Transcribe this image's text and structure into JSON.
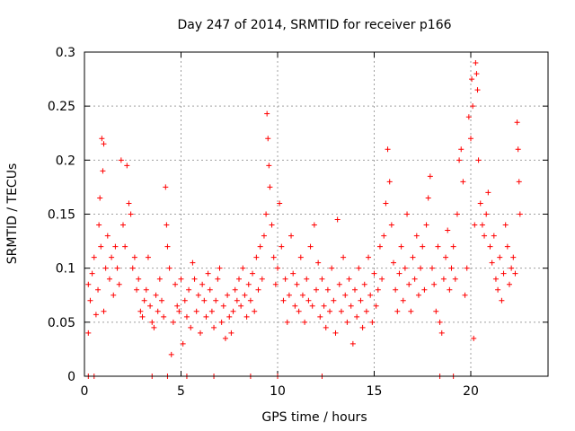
{
  "chart_data": {
    "type": "scatter",
    "title": "Day 247 of 2014, SRMTID for receiver p166",
    "xlabel": "GPS time / hours",
    "ylabel": "SRMTID / TECUs",
    "xlim": [
      0,
      24
    ],
    "ylim": [
      0,
      0.3
    ],
    "xticks": [
      0,
      5,
      10,
      15,
      20
    ],
    "xtick_labels": [
      "0",
      "5",
      "10",
      "15",
      "20"
    ],
    "yticks": [
      0,
      0.05,
      0.1,
      0.15,
      0.2,
      0.25,
      0.3
    ],
    "ytick_labels": [
      "0",
      "0.05",
      "0.1",
      "0.15",
      "0.2",
      "0.25",
      "0.3"
    ],
    "grid": true,
    "marker": "+",
    "color": "#ff0000",
    "series": [
      {
        "name": "SRMTID",
        "points": [
          [
            0.2,
            0.04
          ],
          [
            0.2,
            0.085
          ],
          [
            0.3,
            0.07
          ],
          [
            0.4,
            0.095
          ],
          [
            0.5,
            0.11
          ],
          [
            0.6,
            0.057
          ],
          [
            0.7,
            0.08
          ],
          [
            0.75,
            0.14
          ],
          [
            0.8,
            0.165
          ],
          [
            0.85,
            0.12
          ],
          [
            0.9,
            0.22
          ],
          [
            0.95,
            0.19
          ],
          [
            1.0,
            0.215
          ],
          [
            1.0,
            0.06
          ],
          [
            1.1,
            0.1
          ],
          [
            1.2,
            0.13
          ],
          [
            1.3,
            0.09
          ],
          [
            1.4,
            0.11
          ],
          [
            1.5,
            0.075
          ],
          [
            1.6,
            0.12
          ],
          [
            1.7,
            0.1
          ],
          [
            1.8,
            0.085
          ],
          [
            1.9,
            0.2
          ],
          [
            2.0,
            0.14
          ],
          [
            2.1,
            0.12
          ],
          [
            2.2,
            0.195
          ],
          [
            2.3,
            0.16
          ],
          [
            2.4,
            0.15
          ],
          [
            2.5,
            0.1
          ],
          [
            2.6,
            0.11
          ],
          [
            2.7,
            0.08
          ],
          [
            2.8,
            0.09
          ],
          [
            2.9,
            0.06
          ],
          [
            3.0,
            0.055
          ],
          [
            3.1,
            0.07
          ],
          [
            3.2,
            0.08
          ],
          [
            3.3,
            0.11
          ],
          [
            3.4,
            0.065
          ],
          [
            3.5,
            0.05
          ],
          [
            3.6,
            0.045
          ],
          [
            3.7,
            0.075
          ],
          [
            3.8,
            0.06
          ],
          [
            3.9,
            0.09
          ],
          [
            4.0,
            0.07
          ],
          [
            4.1,
            0.055
          ],
          [
            4.2,
            0.175
          ],
          [
            4.25,
            0.14
          ],
          [
            4.3,
            0.12
          ],
          [
            4.4,
            0.1
          ],
          [
            4.5,
            0.02
          ],
          [
            4.6,
            0.05
          ],
          [
            4.7,
            0.085
          ],
          [
            4.8,
            0.065
          ],
          [
            4.9,
            0.06
          ],
          [
            5.0,
            0.09
          ],
          [
            5.1,
            0.03
          ],
          [
            5.2,
            0.07
          ],
          [
            5.3,
            0.055
          ],
          [
            5.4,
            0.08
          ],
          [
            5.5,
            0.045
          ],
          [
            5.6,
            0.105
          ],
          [
            5.7,
            0.09
          ],
          [
            5.8,
            0.06
          ],
          [
            5.9,
            0.075
          ],
          [
            6.0,
            0.04
          ],
          [
            6.1,
            0.085
          ],
          [
            6.2,
            0.07
          ],
          [
            6.3,
            0.055
          ],
          [
            6.4,
            0.095
          ],
          [
            6.5,
            0.08
          ],
          [
            6.6,
            0.06
          ],
          [
            6.7,
            0.045
          ],
          [
            6.8,
            0.07
          ],
          [
            6.9,
            0.09
          ],
          [
            7.0,
            0.1
          ],
          [
            7.1,
            0.05
          ],
          [
            7.2,
            0.065
          ],
          [
            7.3,
            0.035
          ],
          [
            7.4,
            0.075
          ],
          [
            7.5,
            0.055
          ],
          [
            7.6,
            0.04
          ],
          [
            7.7,
            0.06
          ],
          [
            7.8,
            0.08
          ],
          [
            7.9,
            0.07
          ],
          [
            8.0,
            0.09
          ],
          [
            8.1,
            0.065
          ],
          [
            8.2,
            0.1
          ],
          [
            8.3,
            0.075
          ],
          [
            8.4,
            0.055
          ],
          [
            8.5,
            0.085
          ],
          [
            8.6,
            0.07
          ],
          [
            8.7,
            0.095
          ],
          [
            8.8,
            0.06
          ],
          [
            8.9,
            0.11
          ],
          [
            9.0,
            0.08
          ],
          [
            9.1,
            0.12
          ],
          [
            9.2,
            0.09
          ],
          [
            9.3,
            0.13
          ],
          [
            9.4,
            0.15
          ],
          [
            9.45,
            0.243
          ],
          [
            9.5,
            0.22
          ],
          [
            9.55,
            0.195
          ],
          [
            9.6,
            0.175
          ],
          [
            9.7,
            0.14
          ],
          [
            9.8,
            0.11
          ],
          [
            9.9,
            0.085
          ],
          [
            10.0,
            0.1
          ],
          [
            10.1,
            0.16
          ],
          [
            10.2,
            0.12
          ],
          [
            10.3,
            0.07
          ],
          [
            10.4,
            0.09
          ],
          [
            10.5,
            0.05
          ],
          [
            10.6,
            0.075
          ],
          [
            10.7,
            0.13
          ],
          [
            10.8,
            0.095
          ],
          [
            10.9,
            0.065
          ],
          [
            11.0,
            0.085
          ],
          [
            11.1,
            0.06
          ],
          [
            11.2,
            0.11
          ],
          [
            11.3,
            0.075
          ],
          [
            11.4,
            0.05
          ],
          [
            11.5,
            0.09
          ],
          [
            11.6,
            0.07
          ],
          [
            11.7,
            0.12
          ],
          [
            11.8,
            0.065
          ],
          [
            11.9,
            0.14
          ],
          [
            12.0,
            0.08
          ],
          [
            12.1,
            0.105
          ],
          [
            12.2,
            0.055
          ],
          [
            12.3,
            0.09
          ],
          [
            12.4,
            0.065
          ],
          [
            12.5,
            0.045
          ],
          [
            12.6,
            0.08
          ],
          [
            12.7,
            0.06
          ],
          [
            12.8,
            0.1
          ],
          [
            12.9,
            0.07
          ],
          [
            13.0,
            0.04
          ],
          [
            13.1,
            0.145
          ],
          [
            13.2,
            0.085
          ],
          [
            13.3,
            0.06
          ],
          [
            13.4,
            0.11
          ],
          [
            13.5,
            0.075
          ],
          [
            13.6,
            0.05
          ],
          [
            13.7,
            0.09
          ],
          [
            13.8,
            0.065
          ],
          [
            13.9,
            0.03
          ],
          [
            14.0,
            0.08
          ],
          [
            14.1,
            0.055
          ],
          [
            14.2,
            0.1
          ],
          [
            14.3,
            0.07
          ],
          [
            14.4,
            0.045
          ],
          [
            14.5,
            0.085
          ],
          [
            14.6,
            0.06
          ],
          [
            14.7,
            0.11
          ],
          [
            14.8,
            0.075
          ],
          [
            14.9,
            0.05
          ],
          [
            15.0,
            0.095
          ],
          [
            15.1,
            0.065
          ],
          [
            15.2,
            0.08
          ],
          [
            15.3,
            0.12
          ],
          [
            15.4,
            0.09
          ],
          [
            15.5,
            0.13
          ],
          [
            15.6,
            0.16
          ],
          [
            15.7,
            0.21
          ],
          [
            15.8,
            0.18
          ],
          [
            15.9,
            0.14
          ],
          [
            16.0,
            0.105
          ],
          [
            16.1,
            0.08
          ],
          [
            16.2,
            0.06
          ],
          [
            16.3,
            0.095
          ],
          [
            16.4,
            0.12
          ],
          [
            16.5,
            0.07
          ],
          [
            16.6,
            0.1
          ],
          [
            16.7,
            0.15
          ],
          [
            16.8,
            0.085
          ],
          [
            16.9,
            0.06
          ],
          [
            17.0,
            0.11
          ],
          [
            17.1,
            0.09
          ],
          [
            17.2,
            0.13
          ],
          [
            17.3,
            0.075
          ],
          [
            17.4,
            0.1
          ],
          [
            17.5,
            0.12
          ],
          [
            17.6,
            0.08
          ],
          [
            17.7,
            0.14
          ],
          [
            17.8,
            0.165
          ],
          [
            17.9,
            0.185
          ],
          [
            18.0,
            0.1
          ],
          [
            18.1,
            0.085
          ],
          [
            18.2,
            0.06
          ],
          [
            18.3,
            0.12
          ],
          [
            18.4,
            0.05
          ],
          [
            18.5,
            0.04
          ],
          [
            18.6,
            0.09
          ],
          [
            18.7,
            0.11
          ],
          [
            18.8,
            0.135
          ],
          [
            18.9,
            0.08
          ],
          [
            19.0,
            0.1
          ],
          [
            19.1,
            0.12
          ],
          [
            19.2,
            0.09
          ],
          [
            19.3,
            0.15
          ],
          [
            19.4,
            0.2
          ],
          [
            19.5,
            0.21
          ],
          [
            19.6,
            0.18
          ],
          [
            19.7,
            0.075
          ],
          [
            19.8,
            0.1
          ],
          [
            19.9,
            0.24
          ],
          [
            20.0,
            0.22
          ],
          [
            20.05,
            0.275
          ],
          [
            20.1,
            0.25
          ],
          [
            20.15,
            0.035
          ],
          [
            20.2,
            0.14
          ],
          [
            20.25,
            0.29
          ],
          [
            20.3,
            0.28
          ],
          [
            20.35,
            0.265
          ],
          [
            20.4,
            0.2
          ],
          [
            20.5,
            0.16
          ],
          [
            20.6,
            0.14
          ],
          [
            20.7,
            0.13
          ],
          [
            20.8,
            0.15
          ],
          [
            20.9,
            0.17
          ],
          [
            21.0,
            0.12
          ],
          [
            21.1,
            0.105
          ],
          [
            21.2,
            0.13
          ],
          [
            21.3,
            0.09
          ],
          [
            21.4,
            0.08
          ],
          [
            21.5,
            0.11
          ],
          [
            21.6,
            0.07
          ],
          [
            21.7,
            0.095
          ],
          [
            21.8,
            0.14
          ],
          [
            21.9,
            0.12
          ],
          [
            22.0,
            0.085
          ],
          [
            22.1,
            0.1
          ],
          [
            22.2,
            0.11
          ],
          [
            22.3,
            0.095
          ],
          [
            22.4,
            0.235
          ],
          [
            22.45,
            0.21
          ],
          [
            22.5,
            0.18
          ],
          [
            22.55,
            0.15
          ],
          [
            0.2,
            0
          ],
          [
            0.5,
            0
          ],
          [
            3.5,
            0
          ],
          [
            4.3,
            0
          ],
          [
            5.3,
            0
          ],
          [
            6.7,
            0
          ],
          [
            8.6,
            0
          ],
          [
            10.0,
            0
          ],
          [
            12.3,
            0
          ],
          [
            18.4,
            0
          ],
          [
            19.1,
            0
          ]
        ]
      }
    ]
  }
}
